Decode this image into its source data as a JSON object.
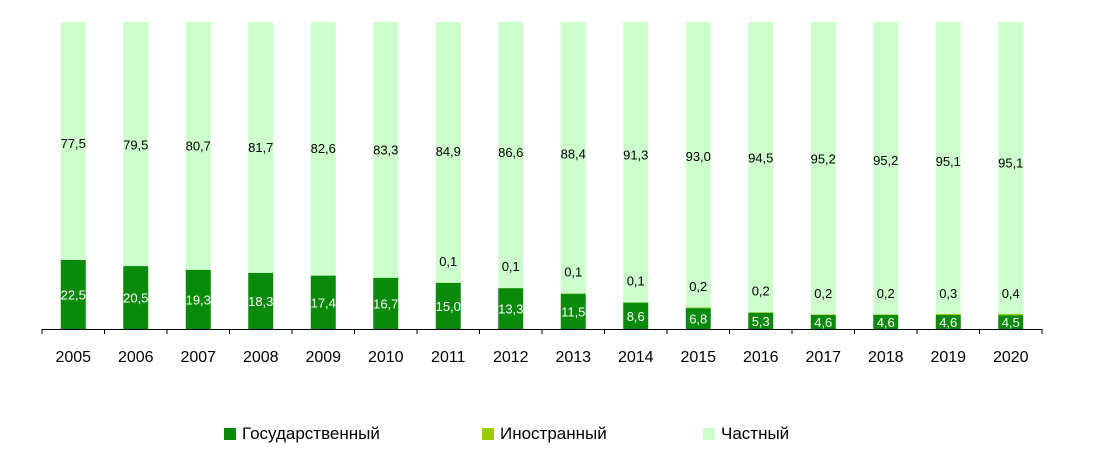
{
  "chart_data": {
    "type": "bar",
    "stacked": true,
    "percent_stacked": true,
    "categories": [
      "2005",
      "2006",
      "2007",
      "2008",
      "2009",
      "2010",
      "2011",
      "2012",
      "2013",
      "2014",
      "2015",
      "2016",
      "2017",
      "2018",
      "2019",
      "2020"
    ],
    "series": [
      {
        "name": "Государственный",
        "color": "#0a8a0a",
        "label_color": "#ffffff",
        "values": [
          22.5,
          20.5,
          19.3,
          18.3,
          17.4,
          16.7,
          15.0,
          13.3,
          11.5,
          8.6,
          6.8,
          5.3,
          4.6,
          4.6,
          4.6,
          4.5
        ],
        "labels": [
          "22,5",
          "20,5",
          "19,3",
          "18,3",
          "17,4",
          "16,7",
          "15,0",
          "13,3",
          "11,5",
          "8,6",
          "6,8",
          "5,3",
          "4,6",
          "4,6",
          "4,6",
          "4,5"
        ]
      },
      {
        "name": "Иностранный",
        "color": "#99cc00",
        "label_color": "#000000",
        "values": [
          0,
          0,
          0,
          0,
          0,
          0,
          0.1,
          0.1,
          0.1,
          0.1,
          0.2,
          0.2,
          0.2,
          0.2,
          0.3,
          0.4
        ],
        "labels": [
          "",
          "",
          "",
          "",
          "",
          "",
          "0,1",
          "0,1",
          "0,1",
          "0,1",
          "0,2",
          "0,2",
          "0,2",
          "0,2",
          "0,3",
          "0,4"
        ]
      },
      {
        "name": "Частный",
        "color": "#ccffcc",
        "label_color": "#000000",
        "values": [
          77.5,
          79.5,
          80.7,
          81.7,
          82.6,
          83.3,
          84.9,
          86.6,
          88.4,
          91.3,
          93.0,
          94.5,
          95.2,
          95.2,
          95.1,
          95.1
        ],
        "labels": [
          "77,5",
          "79,5",
          "80,7",
          "81,7",
          "82,6",
          "83,3",
          "84,9",
          "86,6",
          "88,4",
          "91,3",
          "93,0",
          "94,5",
          "95,2",
          "95,2",
          "95,1",
          "95,1"
        ]
      }
    ],
    "ylim": [
      0,
      100
    ],
    "grid": false,
    "legend_position": "bottom"
  }
}
